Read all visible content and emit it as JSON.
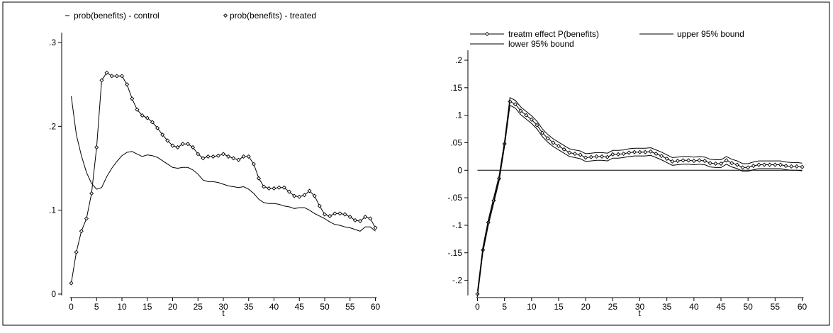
{
  "chart_data": [
    {
      "type": "line",
      "xlabel": "t",
      "ylabel": "",
      "xlim": [
        0,
        60
      ],
      "ylim": [
        0,
        0.3
      ],
      "xticks": [
        0,
        5,
        10,
        15,
        20,
        25,
        30,
        35,
        40,
        45,
        50,
        55,
        60
      ],
      "xtick_labels": [
        "0",
        "5",
        "10",
        "15",
        "20",
        "25",
        "30",
        "35",
        "40",
        "45",
        "50",
        "55",
        "60"
      ],
      "yticks": [
        0,
        0.1,
        0.2,
        0.3
      ],
      "ytick_labels": [
        "0",
        ".1",
        ".2",
        ".3"
      ],
      "grid": false,
      "legend_position": "top",
      "series": [
        {
          "name": "prob(benefits) - control",
          "marker": "none",
          "x": [
            0,
            1,
            2,
            3,
            4,
            5,
            6,
            7,
            8,
            9,
            10,
            11,
            12,
            13,
            14,
            15,
            16,
            17,
            18,
            19,
            20,
            21,
            22,
            23,
            24,
            25,
            26,
            27,
            28,
            29,
            30,
            31,
            32,
            33,
            34,
            35,
            36,
            37,
            38,
            39,
            40,
            41,
            42,
            43,
            44,
            45,
            46,
            47,
            48,
            49,
            50,
            51,
            52,
            53,
            54,
            55,
            56,
            57,
            58,
            59,
            60
          ],
          "values": [
            0.236,
            0.19,
            0.165,
            0.145,
            0.132,
            0.125,
            0.127,
            0.14,
            0.15,
            0.158,
            0.165,
            0.169,
            0.17,
            0.167,
            0.164,
            0.166,
            0.165,
            0.163,
            0.159,
            0.155,
            0.151,
            0.15,
            0.151,
            0.151,
            0.148,
            0.143,
            0.136,
            0.134,
            0.134,
            0.133,
            0.131,
            0.129,
            0.128,
            0.127,
            0.128,
            0.125,
            0.12,
            0.113,
            0.109,
            0.108,
            0.108,
            0.107,
            0.105,
            0.104,
            0.102,
            0.103,
            0.103,
            0.1,
            0.096,
            0.093,
            0.09,
            0.086,
            0.083,
            0.082,
            0.08,
            0.079,
            0.077,
            0.075,
            0.08,
            0.08,
            0.075
          ]
        },
        {
          "name": "prob(benefits) - treated",
          "marker": "diamond",
          "x": [
            0,
            1,
            2,
            3,
            4,
            5,
            6,
            7,
            8,
            9,
            10,
            11,
            12,
            13,
            14,
            15,
            16,
            17,
            18,
            19,
            20,
            21,
            22,
            23,
            24,
            25,
            26,
            27,
            28,
            29,
            30,
            31,
            32,
            33,
            34,
            35,
            36,
            37,
            38,
            39,
            40,
            41,
            42,
            43,
            44,
            45,
            46,
            47,
            48,
            49,
            50,
            51,
            52,
            53,
            54,
            55,
            56,
            57,
            58,
            59,
            60
          ],
          "values": [
            0.013,
            0.05,
            0.075,
            0.09,
            0.12,
            0.175,
            0.255,
            0.264,
            0.26,
            0.26,
            0.26,
            0.25,
            0.233,
            0.22,
            0.213,
            0.21,
            0.205,
            0.198,
            0.19,
            0.183,
            0.177,
            0.175,
            0.179,
            0.179,
            0.175,
            0.167,
            0.162,
            0.164,
            0.164,
            0.165,
            0.167,
            0.164,
            0.162,
            0.16,
            0.164,
            0.164,
            0.155,
            0.138,
            0.128,
            0.126,
            0.126,
            0.127,
            0.127,
            0.122,
            0.117,
            0.116,
            0.118,
            0.123,
            0.117,
            0.105,
            0.095,
            0.093,
            0.096,
            0.096,
            0.095,
            0.092,
            0.088,
            0.087,
            0.092,
            0.09,
            0.079
          ]
        }
      ]
    },
    {
      "type": "line",
      "xlabel": "t",
      "ylabel": "",
      "xlim": [
        0,
        60
      ],
      "ylim": [
        -0.225,
        0.2
      ],
      "xticks": [
        0,
        5,
        10,
        15,
        20,
        25,
        30,
        35,
        40,
        45,
        50,
        55,
        60
      ],
      "xtick_labels": [
        "0",
        "5",
        "10",
        "15",
        "20",
        "25",
        "30",
        "35",
        "40",
        "45",
        "50",
        "55",
        "60"
      ],
      "yticks": [
        -0.2,
        -0.15,
        -0.1,
        -0.05,
        0,
        0.05,
        0.1,
        0.15,
        0.2
      ],
      "ytick_labels": [
        "-.2",
        "-.15",
        "-.1",
        "-.05",
        "0",
        ".05",
        ".1",
        ".15",
        ".2"
      ],
      "grid": false,
      "reference_line_y": 0,
      "legend_position": "top",
      "series": [
        {
          "name": "treatm effect P(benefits)",
          "marker": "diamond",
          "x": [
            0,
            1,
            2,
            3,
            4,
            5,
            6,
            7,
            8,
            9,
            10,
            11,
            12,
            13,
            14,
            15,
            16,
            17,
            18,
            19,
            20,
            21,
            22,
            23,
            24,
            25,
            26,
            27,
            28,
            29,
            30,
            31,
            32,
            33,
            34,
            35,
            36,
            37,
            38,
            39,
            40,
            41,
            42,
            43,
            44,
            45,
            46,
            47,
            48,
            49,
            50,
            51,
            52,
            53,
            54,
            55,
            56,
            57,
            58,
            59,
            60
          ],
          "values": [
            -0.225,
            -0.145,
            -0.095,
            -0.055,
            -0.015,
            0.048,
            0.125,
            0.12,
            0.108,
            0.1,
            0.092,
            0.082,
            0.068,
            0.058,
            0.05,
            0.044,
            0.038,
            0.032,
            0.03,
            0.028,
            0.023,
            0.024,
            0.025,
            0.025,
            0.024,
            0.029,
            0.029,
            0.03,
            0.032,
            0.033,
            0.033,
            0.033,
            0.034,
            0.03,
            0.026,
            0.021,
            0.016,
            0.017,
            0.018,
            0.018,
            0.017,
            0.018,
            0.017,
            0.013,
            0.012,
            0.012,
            0.018,
            0.013,
            0.01,
            0.005,
            0.005,
            0.008,
            0.01,
            0.01,
            0.01,
            0.01,
            0.01,
            0.008,
            0.007,
            0.007,
            0.006
          ]
        },
        {
          "name": "upper 95% bound",
          "marker": "none",
          "x": [
            0,
            1,
            2,
            3,
            4,
            5,
            6,
            7,
            8,
            9,
            10,
            11,
            12,
            13,
            14,
            15,
            16,
            17,
            18,
            19,
            20,
            21,
            22,
            23,
            24,
            25,
            26,
            27,
            28,
            29,
            30,
            31,
            32,
            33,
            34,
            35,
            36,
            37,
            38,
            39,
            40,
            41,
            42,
            43,
            44,
            45,
            46,
            47,
            48,
            49,
            50,
            51,
            52,
            53,
            54,
            55,
            56,
            57,
            58,
            59,
            60
          ],
          "values": [
            -0.22,
            -0.14,
            -0.09,
            -0.05,
            -0.01,
            0.053,
            0.132,
            0.127,
            0.115,
            0.107,
            0.099,
            0.089,
            0.075,
            0.065,
            0.057,
            0.051,
            0.045,
            0.039,
            0.037,
            0.035,
            0.03,
            0.031,
            0.032,
            0.032,
            0.031,
            0.036,
            0.036,
            0.037,
            0.039,
            0.04,
            0.04,
            0.04,
            0.041,
            0.037,
            0.033,
            0.028,
            0.023,
            0.024,
            0.025,
            0.025,
            0.024,
            0.025,
            0.024,
            0.02,
            0.019,
            0.019,
            0.025,
            0.02,
            0.017,
            0.012,
            0.012,
            0.015,
            0.017,
            0.017,
            0.017,
            0.017,
            0.017,
            0.015,
            0.014,
            0.014,
            0.013
          ]
        },
        {
          "name": "lower 95% bound",
          "marker": "none",
          "x": [
            0,
            1,
            2,
            3,
            4,
            5,
            6,
            7,
            8,
            9,
            10,
            11,
            12,
            13,
            14,
            15,
            16,
            17,
            18,
            19,
            20,
            21,
            22,
            23,
            24,
            25,
            26,
            27,
            28,
            29,
            30,
            31,
            32,
            33,
            34,
            35,
            36,
            37,
            38,
            39,
            40,
            41,
            42,
            43,
            44,
            45,
            46,
            47,
            48,
            49,
            50,
            51,
            52,
            53,
            54,
            55,
            56,
            57,
            58,
            59,
            60
          ],
          "values": [
            -0.23,
            -0.15,
            -0.1,
            -0.06,
            -0.02,
            0.043,
            0.118,
            0.113,
            0.101,
            0.093,
            0.085,
            0.075,
            0.061,
            0.051,
            0.043,
            0.037,
            0.031,
            0.025,
            0.023,
            0.021,
            0.016,
            0.017,
            0.018,
            0.018,
            0.017,
            0.022,
            0.022,
            0.023,
            0.025,
            0.026,
            0.026,
            0.026,
            0.027,
            0.023,
            0.019,
            0.014,
            0.009,
            0.01,
            0.011,
            0.011,
            0.01,
            0.011,
            0.01,
            0.006,
            0.005,
            0.005,
            0.011,
            0.006,
            0.003,
            -0.002,
            -0.002,
            0.001,
            0.003,
            0.003,
            0.003,
            0.003,
            0.003,
            0.001,
            0.0,
            0.0,
            -0.001
          ]
        }
      ]
    }
  ]
}
